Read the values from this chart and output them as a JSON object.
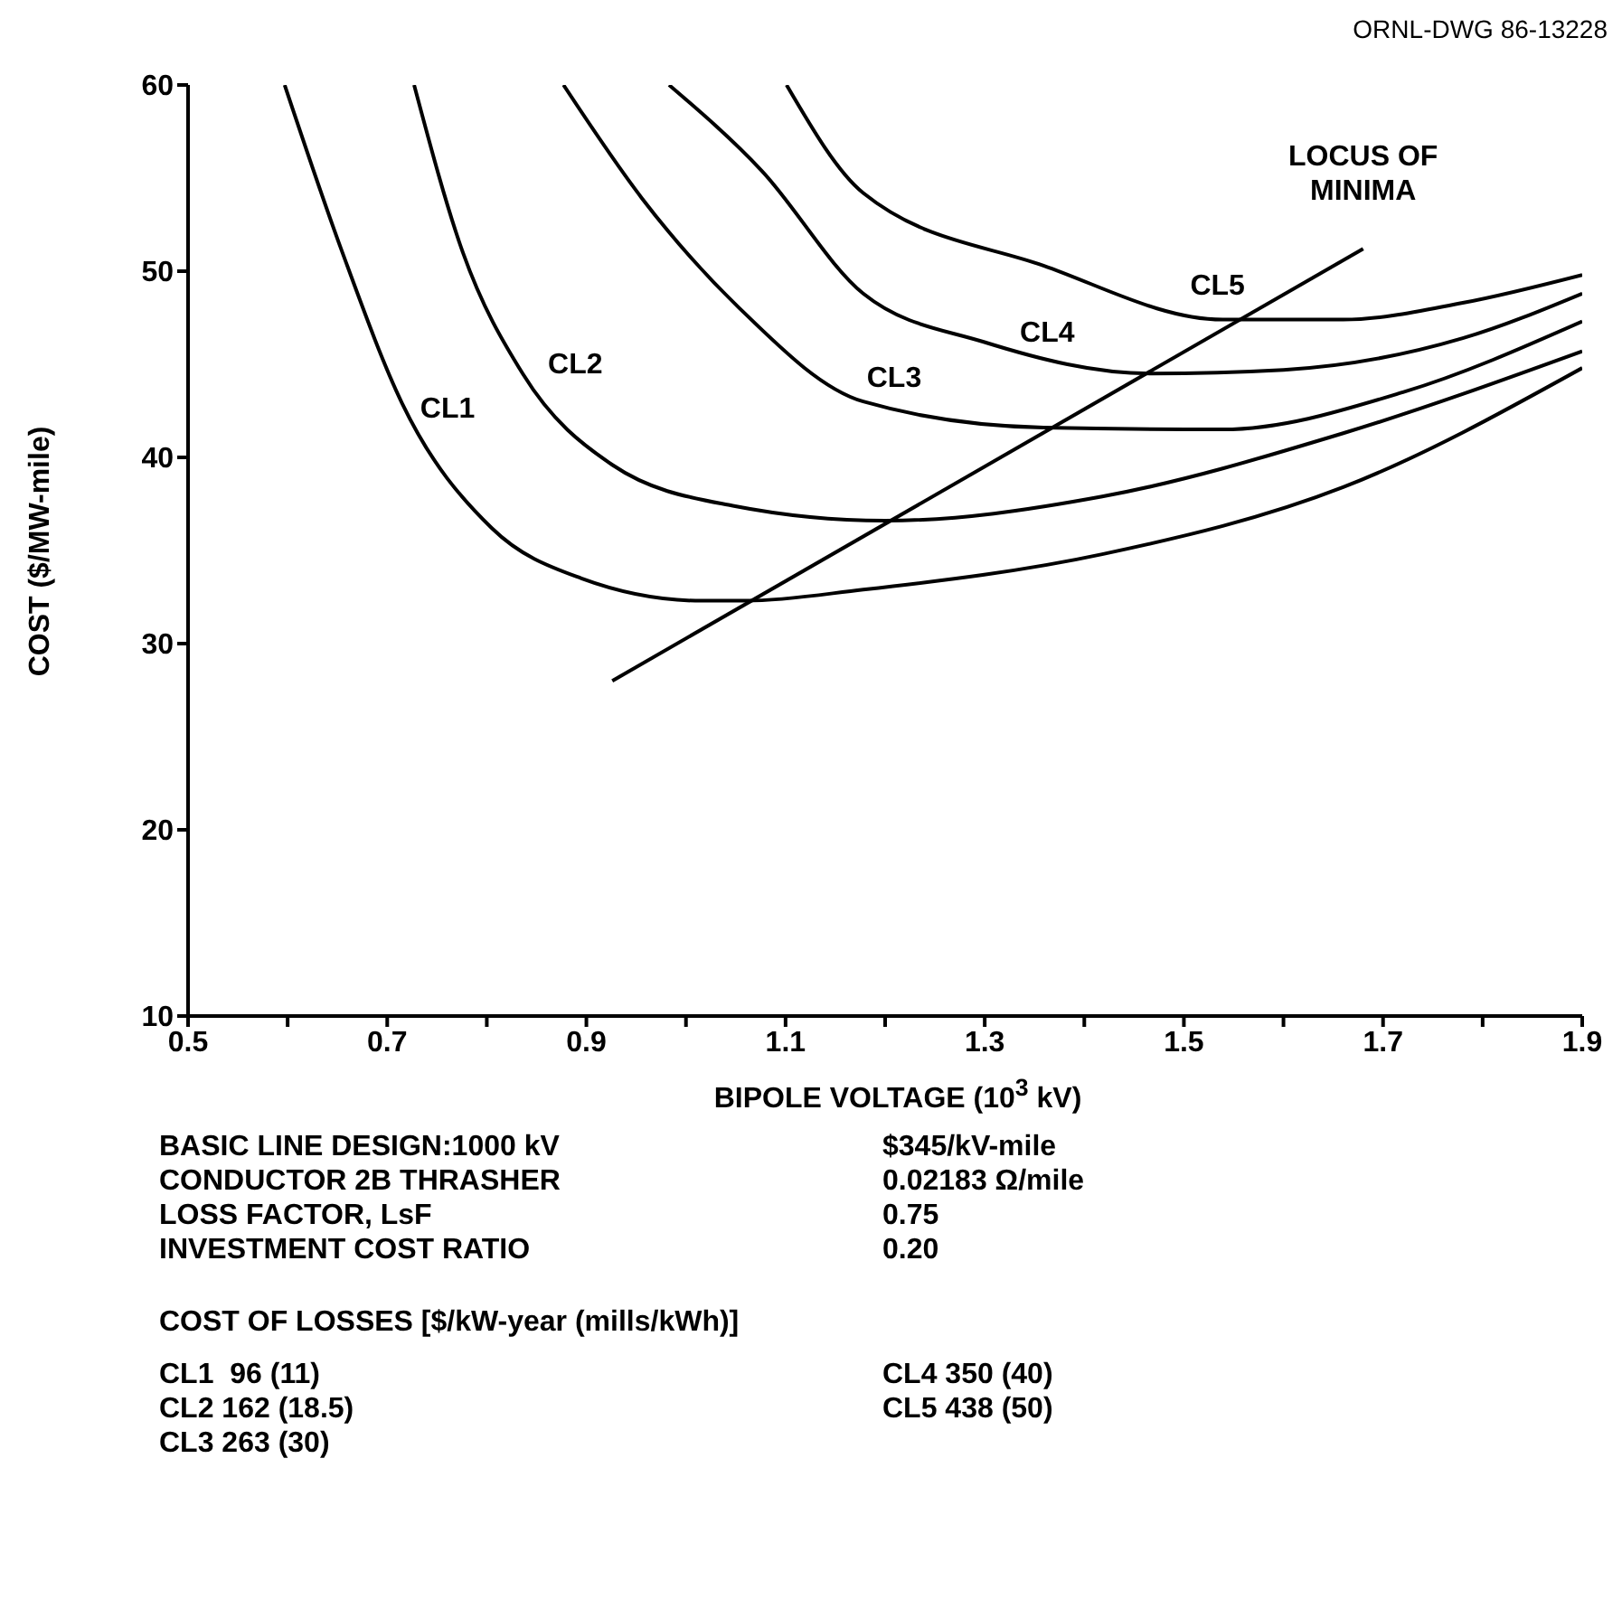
{
  "chart_data": {
    "type": "line",
    "xlabel": "BIPOLE VOLTAGE (10$^{3}$ kV)",
    "ylabel": "COST ($/MW-mile)",
    "xlim": [
      0.5,
      1.9
    ],
    "ylim": [
      10,
      60
    ],
    "xticks": [
      0.5,
      {
        "value": 0.6,
        "label": null
      },
      0.7,
      {
        "value": 0.8,
        "label": null
      },
      0.9,
      {
        "value": 1.0,
        "label": null
      },
      1.1,
      {
        "value": 1.2,
        "label": null
      },
      1.3,
      {
        "value": 1.4,
        "label": null
      },
      1.5,
      {
        "value": 1.6,
        "label": null
      },
      1.7,
      {
        "value": 1.8,
        "label": null
      },
      1.9
    ],
    "yticks": [
      10,
      20,
      30,
      40,
      50,
      60
    ],
    "grid": false,
    "legend": false,
    "marker": "none",
    "line_style": "solid",
    "series": [
      {
        "name": "CL1",
        "color": "#000000",
        "x": [
          0.597,
          0.655,
          0.715,
          0.805,
          0.895,
          1.016,
          1.06,
          1.178,
          1.418,
          1.66,
          1.9
        ],
        "values": [
          60,
          51.0,
          42.9,
          36.2,
          33.5,
          32.3,
          32.3,
          32.9,
          34.8,
          38.4,
          44.8
        ]
      },
      {
        "name": "CL2",
        "color": "#000000",
        "x": [
          0.727,
          0.776,
          0.836,
          0.926,
          1.047,
          1.2,
          1.418,
          1.66,
          1.9
        ],
        "values": [
          60,
          51.0,
          44.5,
          39.6,
          37.4,
          36.6,
          37.9,
          41.3,
          45.7
        ]
      },
      {
        "name": "CL3",
        "color": "#000000",
        "x": [
          0.877,
          0.956,
          1.052,
          1.178,
          1.359,
          1.539,
          1.72,
          1.9
        ],
        "values": [
          60,
          53.9,
          48.1,
          43.0,
          41.6,
          41.5,
          43.5,
          47.3
        ]
      },
      {
        "name": "CL4",
        "color": "#000000",
        "x": [
          0.983,
          1.076,
          1.178,
          1.299,
          1.467,
          1.6,
          1.78,
          1.9
        ],
        "values": [
          60,
          55.4,
          48.8,
          46.2,
          44.5,
          44.7,
          46.4,
          48.8
        ]
      },
      {
        "name": "CL5",
        "color": "#000000",
        "x": [
          1.101,
          1.178,
          1.359,
          1.539,
          1.66,
          1.78,
          1.9
        ],
        "values": [
          60,
          54.2,
          50.3,
          47.4,
          47.4,
          48.3,
          49.8
        ]
      },
      {
        "name": "LOCUS OF MINIMA",
        "color": "#000000",
        "x": [
          0.926,
          1.68
        ],
        "values": [
          28.0,
          51.2
        ]
      }
    ],
    "annotations": [
      "ORNL-DWG 86-13228",
      "BASIC LINE DESIGN:1000 kV",
      "$345/kV-mile",
      "CONDUCTOR 2B THRASHER",
      "0.02183 Ω/mile",
      "LOSS FACTOR, LsF",
      "0.75",
      "INVESTMENT COST RATIO",
      "0.20",
      "COST OF LOSSES [$/kW-year (mills/kWh)]",
      "CL1  96 (11)",
      "CL2 162 (18.5)",
      "CL3 263 (30)",
      "CL4 350 (40)",
      "CL5 438 (50)"
    ]
  }
}
